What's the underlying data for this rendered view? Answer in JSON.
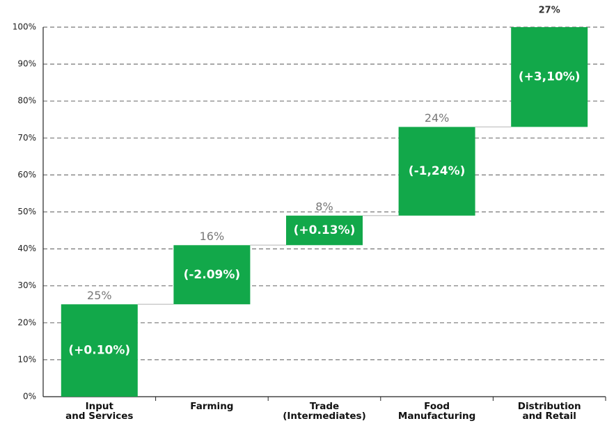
{
  "chart_data": {
    "type": "waterfall",
    "categories": [
      "Input\nand Services",
      "Farming",
      "Trade\n(Intermediates)",
      "Food\nManufacturing",
      "Distribution\nand Retail"
    ],
    "values": [
      25,
      16,
      8,
      24,
      27
    ],
    "value_labels": [
      "25%",
      "16%",
      "8%",
      "24%",
      "27%"
    ],
    "annotations": [
      "(+0.10%)",
      "(-2.09%)",
      "(+0.13%)",
      "(-1,24%)",
      "(+3,10%)"
    ],
    "color": "#12a84a",
    "ylim": [
      0,
      100
    ],
    "yticks": [
      {
        "value": 0,
        "label": "0%"
      },
      {
        "value": 10,
        "label": "10%"
      },
      {
        "value": 20,
        "label": "20%"
      },
      {
        "value": 30,
        "label": "30%"
      },
      {
        "value": 40,
        "label": "40%"
      },
      {
        "value": 50,
        "label": "50%"
      },
      {
        "value": 60,
        "label": "60%"
      },
      {
        "value": 70,
        "label": "70%"
      },
      {
        "value": 80,
        "label": "80%"
      },
      {
        "value": 90,
        "label": "90%"
      },
      {
        "value": 100,
        "label": "100%"
      }
    ],
    "grid": true
  }
}
